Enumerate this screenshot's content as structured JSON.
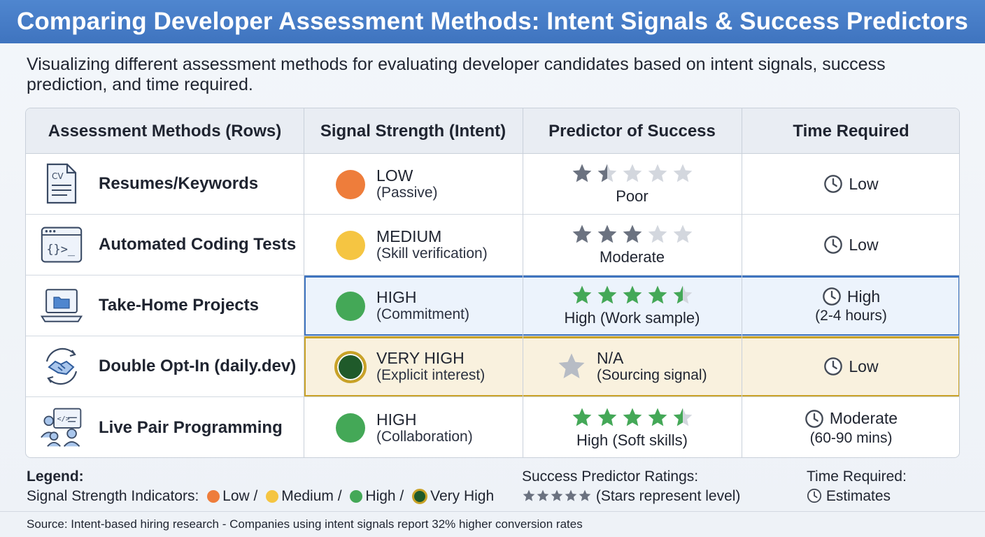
{
  "title": "Comparing Developer Assessment Methods: Intent Signals & Success Predictors",
  "subtitle": "Visualizing different assessment methods for evaluating developer candidates based on intent signals, success prediction, and time required.",
  "colors": {
    "low": "#ee7d3b",
    "medium": "#f5c542",
    "high": "#44a857",
    "very_high": "#1f5a2a",
    "very_high_ring": "#c9a227",
    "star_gray": "#6b7280",
    "star_green": "#44a857",
    "star_empty": "#d3d7de"
  },
  "table": {
    "headers": [
      "Assessment Methods (Rows)",
      "Signal Strength (Intent)",
      "Predictor of Success",
      "Time Required"
    ],
    "rows": [
      {
        "icon": "resume-cv-icon",
        "method": "Resumes/Keywords",
        "signal_level": "low",
        "signal_main": "LOW",
        "signal_sub": "(Passive)",
        "stars": 1.5,
        "star_color": "gray",
        "predictor_label": "Poor",
        "predictor_main": "",
        "time_main": "Low",
        "time_sub": ""
      },
      {
        "icon": "code-window-icon",
        "method": "Automated Coding Tests",
        "signal_level": "medium",
        "signal_main": "MEDIUM",
        "signal_sub": "(Skill verification)",
        "stars": 3,
        "star_color": "gray",
        "predictor_label": "Moderate",
        "predictor_main": "",
        "time_main": "Low",
        "time_sub": ""
      },
      {
        "icon": "laptop-folder-icon",
        "method": "Take-Home Projects",
        "signal_level": "high",
        "signal_main": "HIGH",
        "signal_sub": "(Commitment)",
        "stars": 4.5,
        "star_color": "green",
        "predictor_label": "High (Work sample)",
        "predictor_main": "",
        "time_main": "High",
        "time_sub": "(2-4 hours)",
        "highlight": "blue"
      },
      {
        "icon": "handshake-icon",
        "method": "Double Opt-In (daily.dev)",
        "signal_level": "very_high",
        "signal_main": "VERY HIGH",
        "signal_sub": "(Explicit interest)",
        "stars": null,
        "star_color": "na",
        "predictor_label": "(Sourcing signal)",
        "predictor_main": "N/A",
        "time_main": "Low",
        "time_sub": "",
        "highlight": "gold"
      },
      {
        "icon": "pair-programming-icon",
        "method": "Live Pair Programming",
        "signal_level": "high",
        "signal_main": "HIGH",
        "signal_sub": "(Collaboration)",
        "stars": 4.5,
        "star_color": "green",
        "predictor_label": "High (Soft skills)",
        "predictor_main": "",
        "time_main": "Moderate",
        "time_sub": "(60-90 mins)"
      }
    ]
  },
  "legend": {
    "title": "Legend:",
    "signal_label": "Signal Strength Indicators:",
    "low": "Low /",
    "medium": "Medium /",
    "high": "High /",
    "very_high": "Very High",
    "success_title": "Success Predictor Ratings:",
    "success_desc": "(Stars represent level)",
    "time_title": "Time Required:",
    "time_desc": "Estimates"
  },
  "footer": "Source: Intent-based hiring research - Companies using intent signals report 32% higher conversion rates"
}
